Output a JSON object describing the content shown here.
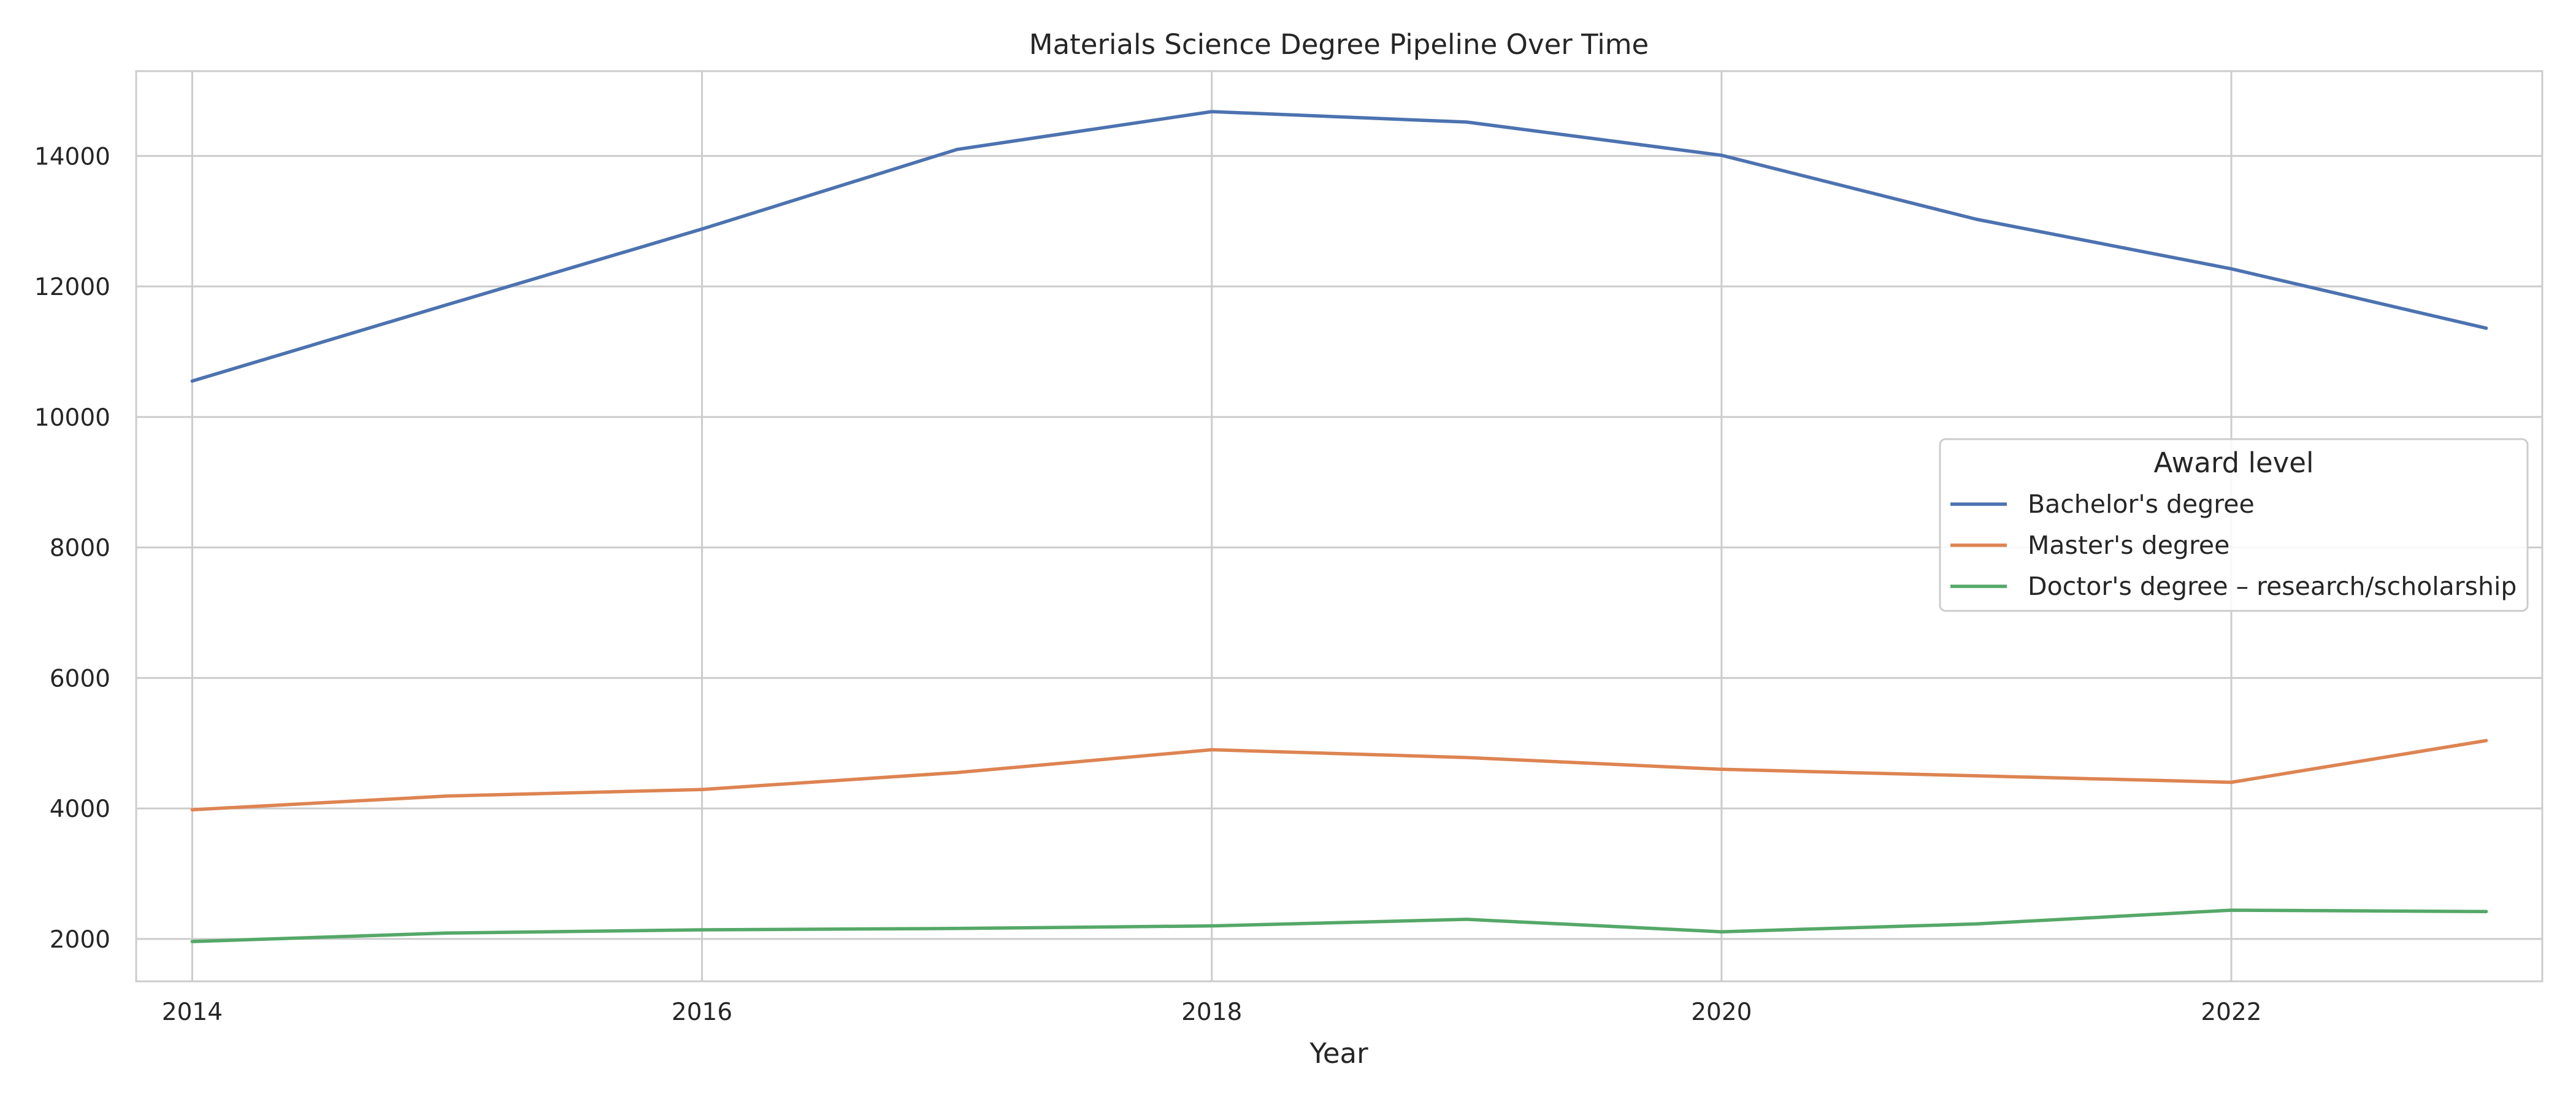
{
  "chart_data": {
    "type": "line",
    "title": "Materials Science Degree Pipeline Over Time",
    "xlabel": "Year",
    "ylabel": "",
    "x": [
      2014,
      2015,
      2016,
      2017,
      2018,
      2019,
      2020,
      2021,
      2022,
      2023
    ],
    "xlim": [
      2013.78,
      2023.22
    ],
    "ylim": [
      1350,
      15300
    ],
    "xticks": [
      2014,
      2016,
      2018,
      2020,
      2022
    ],
    "yticks": [
      2000,
      4000,
      6000,
      8000,
      10000,
      12000,
      14000
    ],
    "grid": true,
    "legend": {
      "title": "Award level",
      "placement": "center-right"
    },
    "series": [
      {
        "name": "Bachelor's degree",
        "color": "#4c72b0",
        "values": [
          10550,
          11720,
          12880,
          14100,
          14680,
          14520,
          14010,
          13030,
          12270,
          11360
        ]
      },
      {
        "name": "Master's degree",
        "color": "#dd8452",
        "values": [
          3980,
          4190,
          4290,
          4550,
          4900,
          4780,
          4600,
          4500,
          4400,
          5040
        ]
      },
      {
        "name": "Doctor's degree – research/scholarship",
        "color": "#55a868",
        "values": [
          1960,
          2090,
          2140,
          2160,
          2200,
          2300,
          2110,
          2230,
          2440,
          2420
        ]
      }
    ]
  }
}
